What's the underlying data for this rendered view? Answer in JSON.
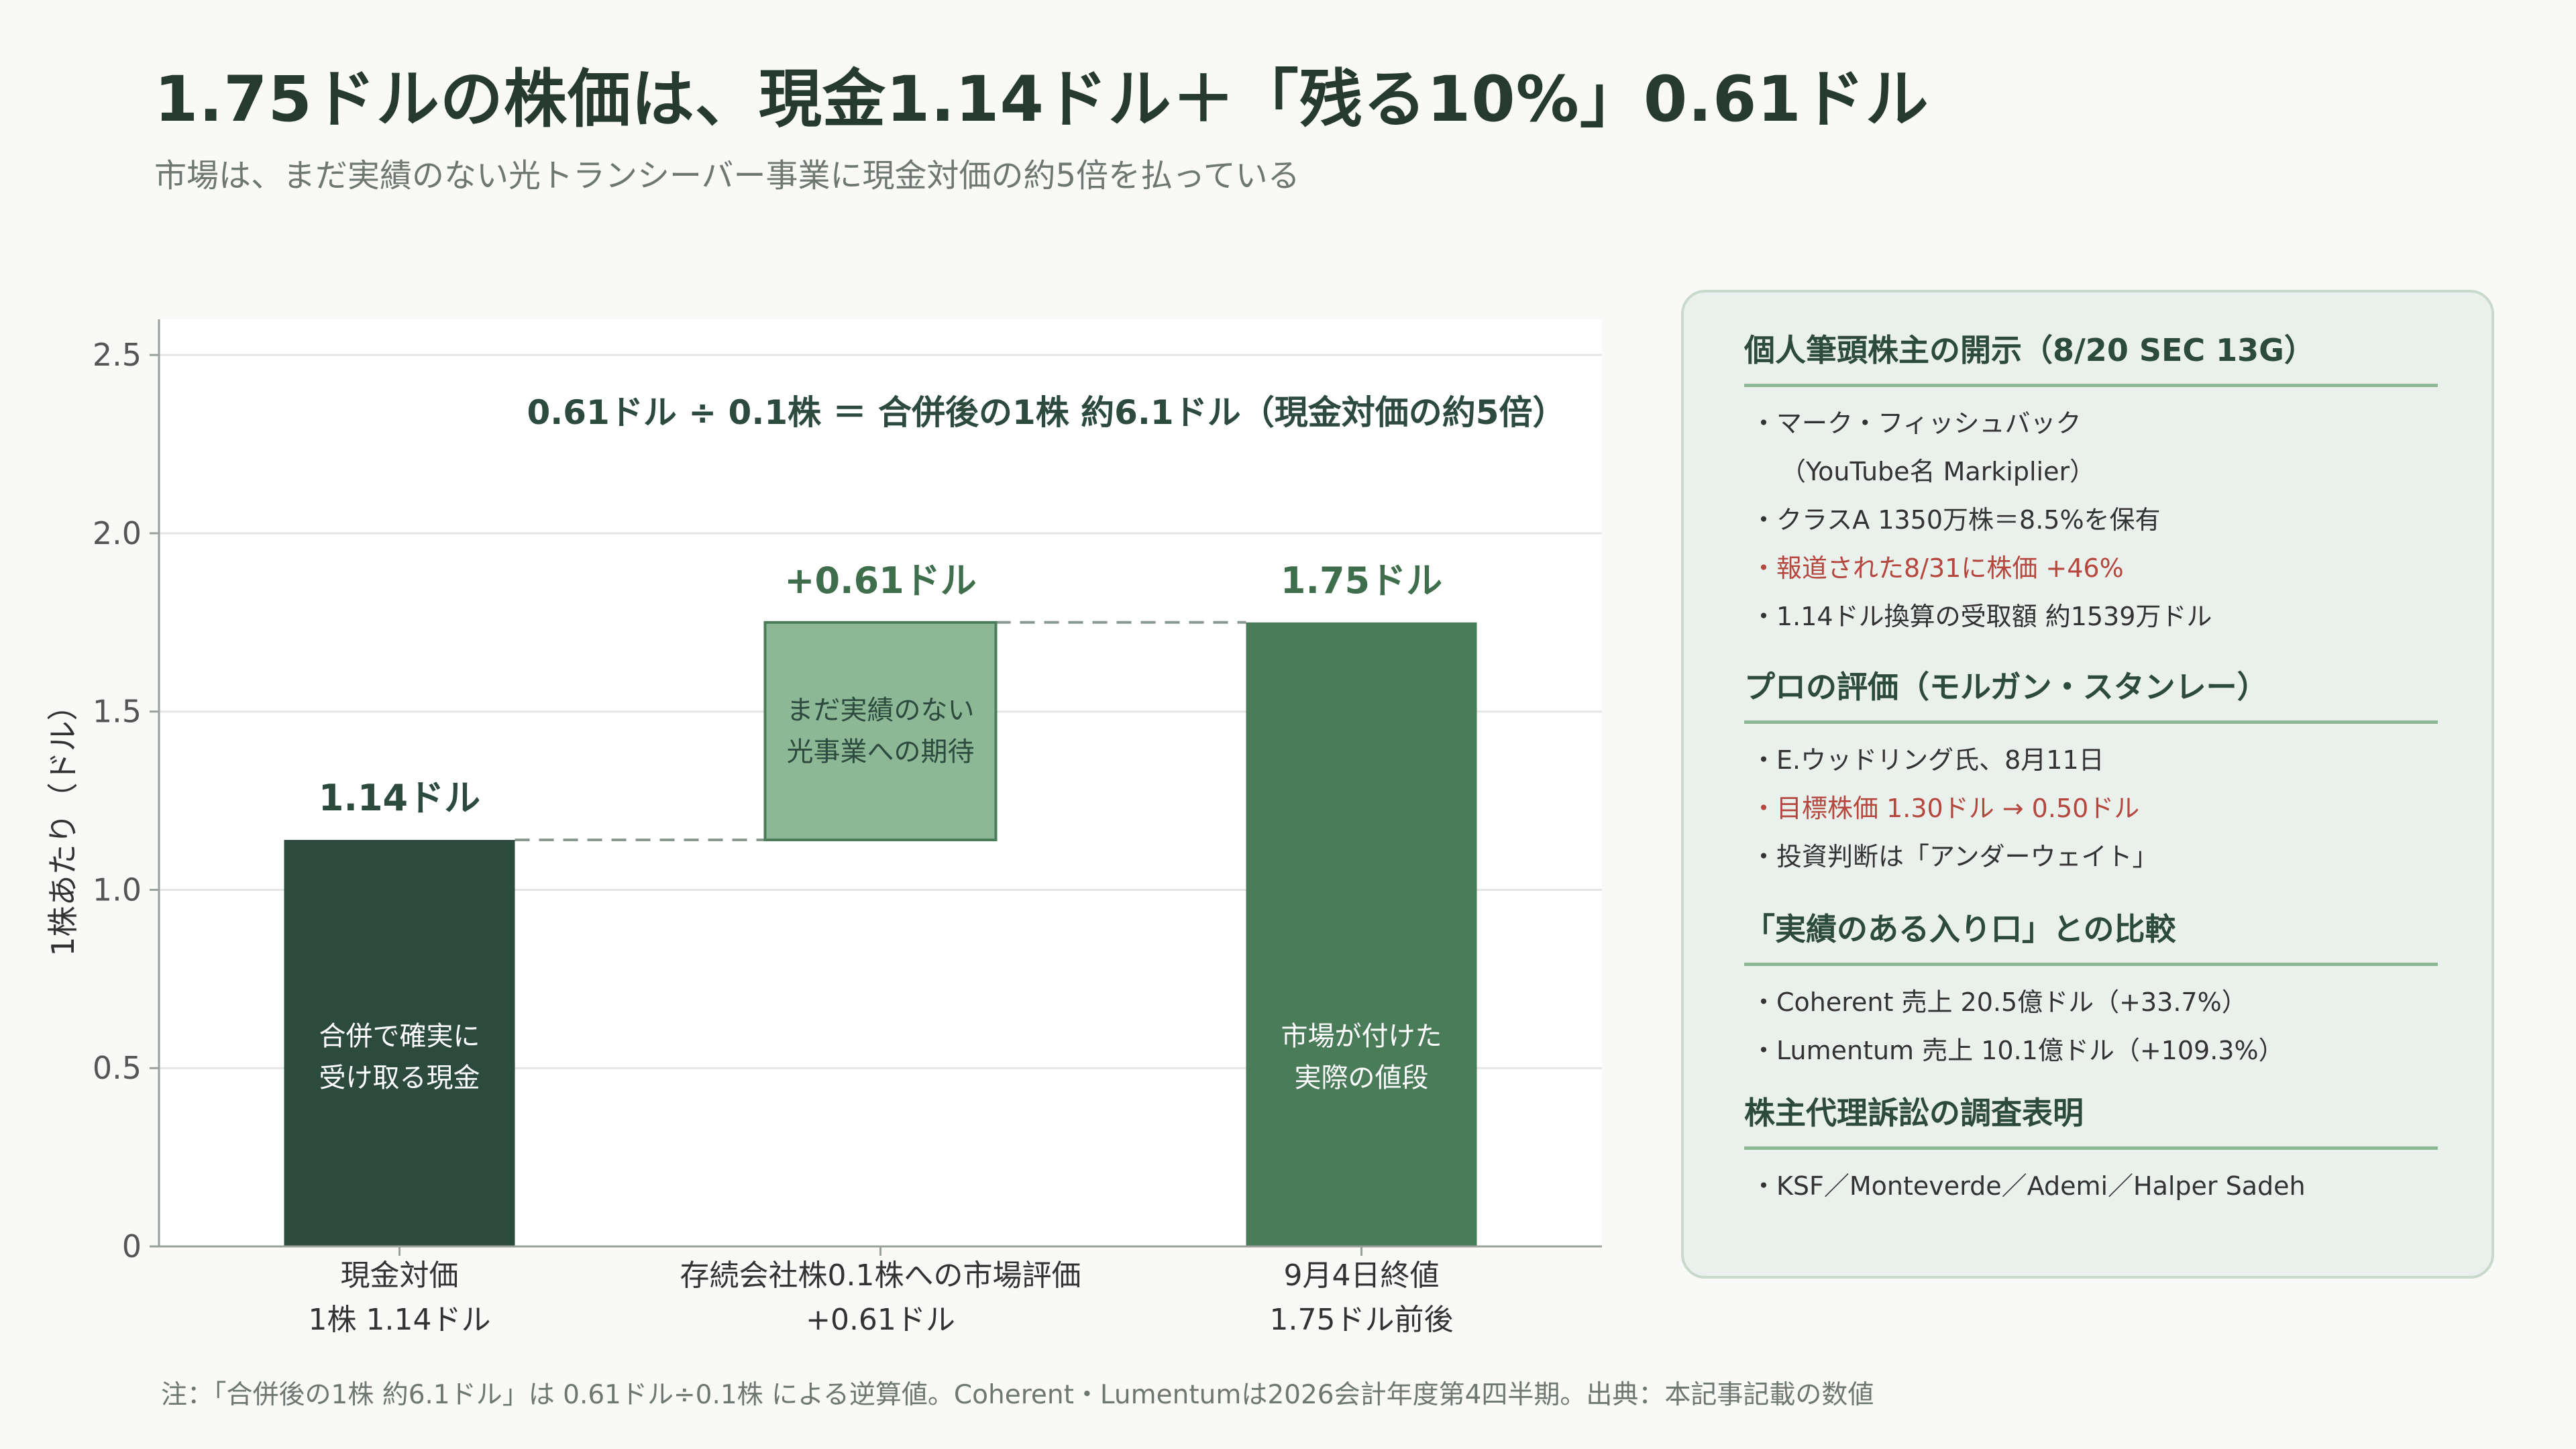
{
  "title": "1.75ドルの株価は、現金1.14ドル＋「残る10%」0.61ドル",
  "subtitle": "市場は、まだ実績のない光トランシーバー事業に現金対価の約5倍を払っている",
  "chart_data": {
    "type": "bar",
    "subtype": "waterfall",
    "ylabel": "1株あたり（ドル）",
    "ylim": [
      0,
      2.6
    ],
    "yticks": [
      "0",
      "0.5",
      "1.0",
      "1.5",
      "2.0",
      "2.5"
    ],
    "grid": true,
    "categories": [
      [
        "現金対価",
        "1株 1.14ドル"
      ],
      [
        "存続会社株0.1株への市場評価",
        "+0.61ドル"
      ],
      [
        "9月4日終値",
        "1.75ドル前後"
      ]
    ],
    "bars": [
      {
        "start": 0,
        "end": 1.14,
        "value_label": "1.14ドル",
        "inner_label": [
          "合併で確実に",
          "受け取る現金"
        ],
        "color": "#2d4a3e",
        "text_color": "#ffffff"
      },
      {
        "start": 1.14,
        "end": 1.75,
        "value_label": "+0.61ドル",
        "inner_label": [
          "まだ実績のない",
          "光事業への期待"
        ],
        "color": "#8cb896",
        "text_color": "#2d4a3e"
      },
      {
        "start": 0,
        "end": 1.75,
        "value_label": "1.75ドル",
        "inner_label": [
          "市場が付けた",
          "実際の値段"
        ],
        "color": "#4a7c59",
        "text_color": "#ffffff"
      }
    ],
    "annotation": "0.61ドル ÷ 0.1株 ＝ 合併後の1株 約6.1ドル（現金対価の約5倍）"
  },
  "panel": {
    "sections": [
      {
        "heading": "個人筆頭株主の開示（8/20 SEC 13G）",
        "items": [
          {
            "text": "・マーク・フィッシュバック",
            "style": "normal"
          },
          {
            "text": "（YouTube名 Markiplier）",
            "style": "indent"
          },
          {
            "text": "・クラスA 1350万株＝8.5%を保有",
            "style": "normal"
          },
          {
            "text": "・報道された8/31に株価 +46%",
            "style": "red"
          },
          {
            "text": "・1.14ドル換算の受取額 約1539万ドル",
            "style": "normal"
          }
        ]
      },
      {
        "heading": "プロの評価（モルガン・スタンレー）",
        "items": [
          {
            "text": "・E.ウッドリング氏、8月11日",
            "style": "normal"
          },
          {
            "text": "・目標株価 1.30ドル → 0.50ドル",
            "style": "red"
          },
          {
            "text": "・投資判断は「アンダーウェイト」",
            "style": "normal"
          }
        ]
      },
      {
        "heading": "「実績のある入り口」との比較",
        "items": [
          {
            "text": "・Coherent 売上 20.5億ドル（+33.7%）",
            "style": "normal"
          },
          {
            "text": "・Lumentum 売上 10.1億ドル（+109.3%）",
            "style": "normal"
          }
        ]
      },
      {
        "heading": "株主代理訴訟の調査表明",
        "items": [
          {
            "text": "・KSF／Monteverde／Ademi／Halper Sadeh",
            "style": "normal"
          }
        ]
      }
    ]
  },
  "footnote": "注：「合併後の1株 約6.1ドル」は 0.61ドル÷0.1株 による逆算値。Coherent・Lumentumは2026会計年度第4四半期。出典：本記事記載の数値"
}
